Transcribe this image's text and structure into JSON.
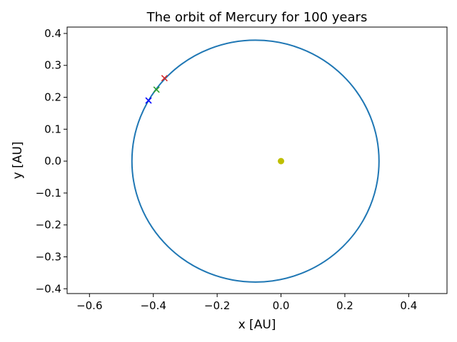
{
  "chart_data": {
    "type": "scatter",
    "title": "The orbit of Mercury for 100 years",
    "xlabel": "x [AU]",
    "ylabel": "y [AU]",
    "xlim": [
      -0.67,
      0.52
    ],
    "ylim": [
      -0.415,
      0.42
    ],
    "xticks": [
      -0.6,
      -0.4,
      -0.2,
      0.0,
      0.2,
      0.4
    ],
    "yticks": [
      -0.4,
      -0.3,
      -0.2,
      -0.1,
      0.0,
      0.1,
      0.2,
      0.3,
      0.4
    ],
    "tick_labels_x": [
      "−0.6",
      "−0.4",
      "−0.2",
      "0.0",
      "0.2",
      "0.4"
    ],
    "tick_labels_y": [
      "−0.4",
      "−0.3",
      "−0.2",
      "−0.1",
      "0.0",
      "0.1",
      "0.2",
      "0.3",
      "0.4"
    ],
    "grid": false,
    "orbit": {
      "center": [
        -0.08,
        0.0
      ],
      "semi_axis_x": 0.387,
      "semi_axis_y": 0.379,
      "color": "#1f77b4"
    },
    "sun": {
      "x": 0.0,
      "y": 0.0,
      "color": "#bfbf00"
    },
    "markers": [
      {
        "x": -0.365,
        "y": 0.26,
        "color": "#d62728",
        "shape": "x"
      },
      {
        "x": -0.39,
        "y": 0.224,
        "color": "#2ca02c",
        "shape": "x"
      },
      {
        "x": -0.415,
        "y": 0.19,
        "color": "#0000ff",
        "shape": "x"
      }
    ]
  }
}
